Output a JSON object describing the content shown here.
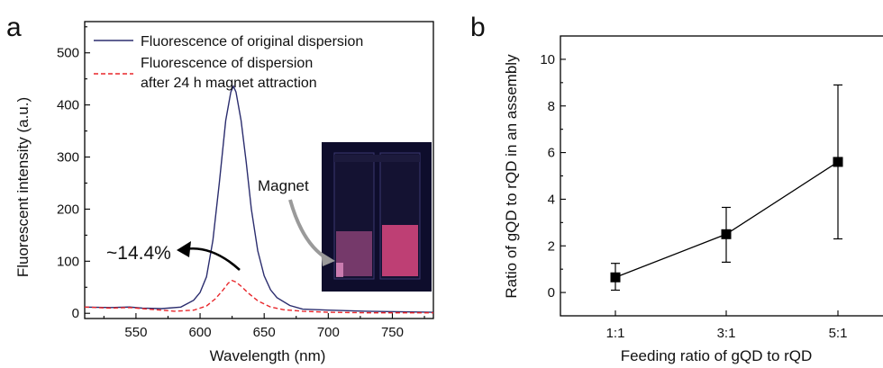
{
  "panels": {
    "a": "a",
    "b": "b"
  },
  "chart_data": [
    {
      "type": "line",
      "panel": "a",
      "xlabel": "Wavelength (nm)",
      "ylabel": "Fluorescent intensity (a.u.)",
      "xlim": [
        510,
        782
      ],
      "ylim": [
        -10,
        560
      ],
      "xticks": [
        550,
        600,
        650,
        700,
        750
      ],
      "yticks": [
        0,
        100,
        200,
        300,
        400,
        500
      ],
      "series": [
        {
          "name": "Fluorescence of original dispersion",
          "color": "#2b2d6e",
          "style": "solid",
          "x": [
            510,
            530,
            545,
            555,
            570,
            585,
            595,
            600,
            605,
            610,
            615,
            620,
            624,
            626,
            628,
            632,
            636,
            640,
            645,
            650,
            655,
            660,
            670,
            680,
            700,
            730,
            782
          ],
          "y": [
            12,
            11,
            12,
            10,
            9,
            12,
            25,
            40,
            70,
            140,
            250,
            370,
            425,
            436,
            425,
            370,
            290,
            200,
            120,
            72,
            45,
            30,
            15,
            8,
            6,
            4,
            2
          ]
        },
        {
          "name": "Fluorescence of dispersion after 24 h magnet attraction",
          "color": "#e8262a",
          "style": "dashed",
          "x": [
            510,
            530,
            545,
            560,
            580,
            595,
            605,
            612,
            618,
            622,
            625,
            628,
            632,
            638,
            645,
            655,
            665,
            680,
            700,
            730,
            782
          ],
          "y": [
            12,
            10,
            11,
            8,
            4,
            6,
            14,
            28,
            45,
            58,
            63,
            60,
            52,
            38,
            24,
            12,
            7,
            4,
            2,
            1,
            1
          ]
        }
      ],
      "annotations": {
        "percent": "~14.4%",
        "magnet": "Magnet"
      },
      "inset_colors": {
        "background": "#0e0d2c",
        "cuvette_bg": "#141232",
        "glow_left": "#c45a99",
        "glow_right": "#d0457b",
        "cap": "#1c1a3c"
      }
    },
    {
      "type": "scatter",
      "panel": "b",
      "xlabel": "Feeding ratio of gQD to rQD",
      "ylabel": "Ratio of gQD to rQD in an assembly",
      "categories": [
        "1:1",
        "3:1",
        "5:1"
      ],
      "ylim": [
        -1,
        11
      ],
      "yticks": [
        0,
        2,
        4,
        6,
        8,
        10
      ],
      "values": [
        0.65,
        2.5,
        5.6
      ],
      "errors_low": [
        0.1,
        1.3,
        2.3
      ],
      "errors_high": [
        1.25,
        3.65,
        8.9
      ],
      "color": "#000000"
    }
  ]
}
